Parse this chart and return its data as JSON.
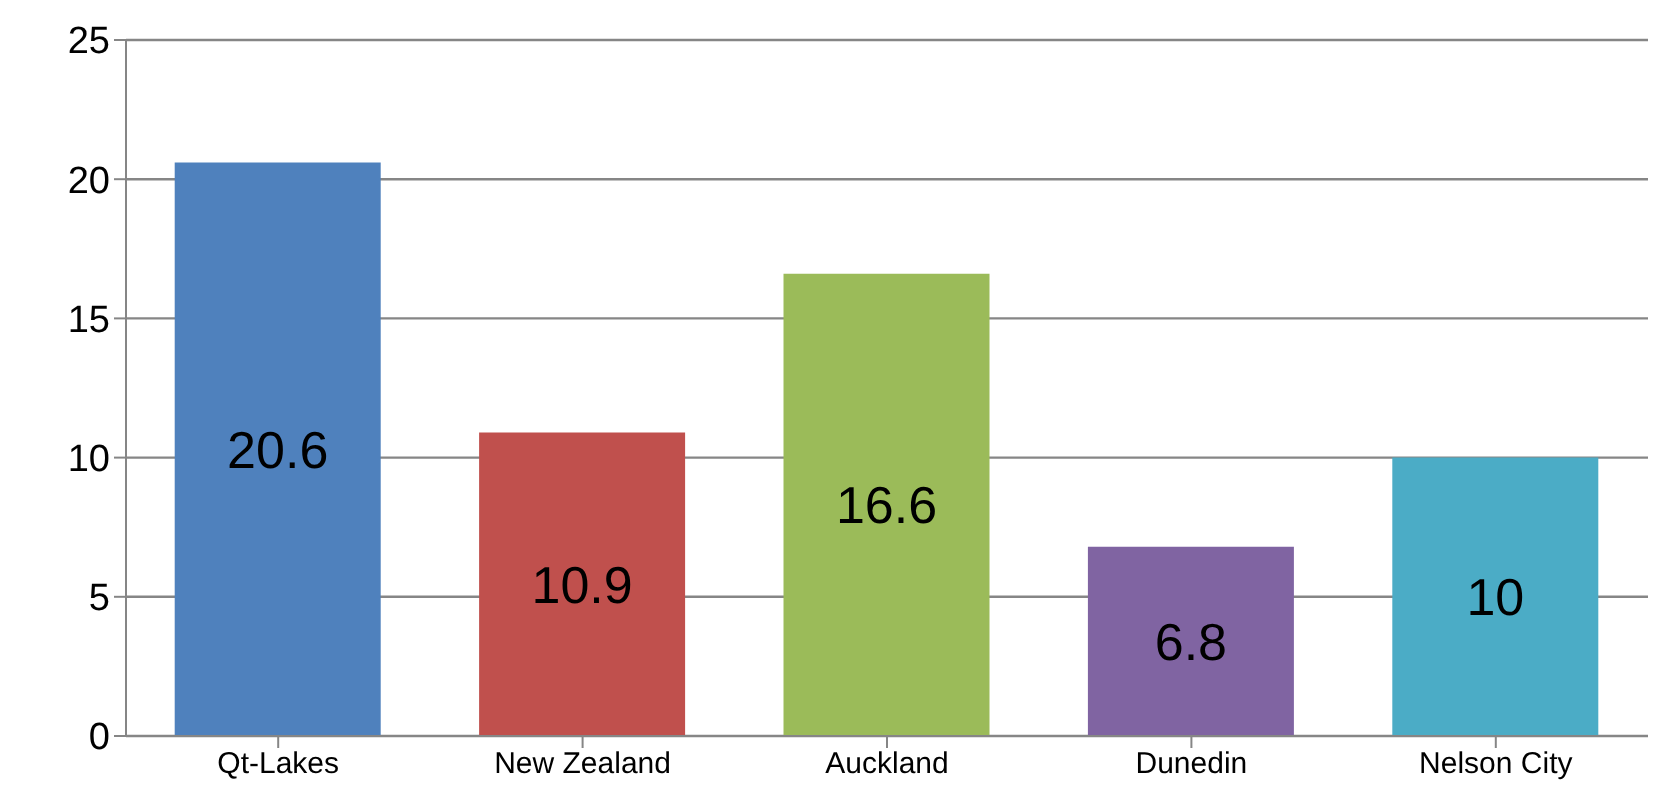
{
  "chart_data": {
    "type": "bar",
    "categories": [
      "Qt-Lakes",
      "New Zealand",
      "Auckland",
      "Dunedin",
      "Nelson City"
    ],
    "values": [
      20.6,
      10.9,
      16.6,
      6.8,
      10
    ],
    "colors": [
      "#4f81bd",
      "#c0504d",
      "#9bbb59",
      "#8064a2",
      "#4bacc6"
    ],
    "ylim": [
      0,
      25
    ],
    "yticks": [
      0,
      5,
      10,
      15,
      20,
      25
    ],
    "grid": "y",
    "data_labels": true
  }
}
